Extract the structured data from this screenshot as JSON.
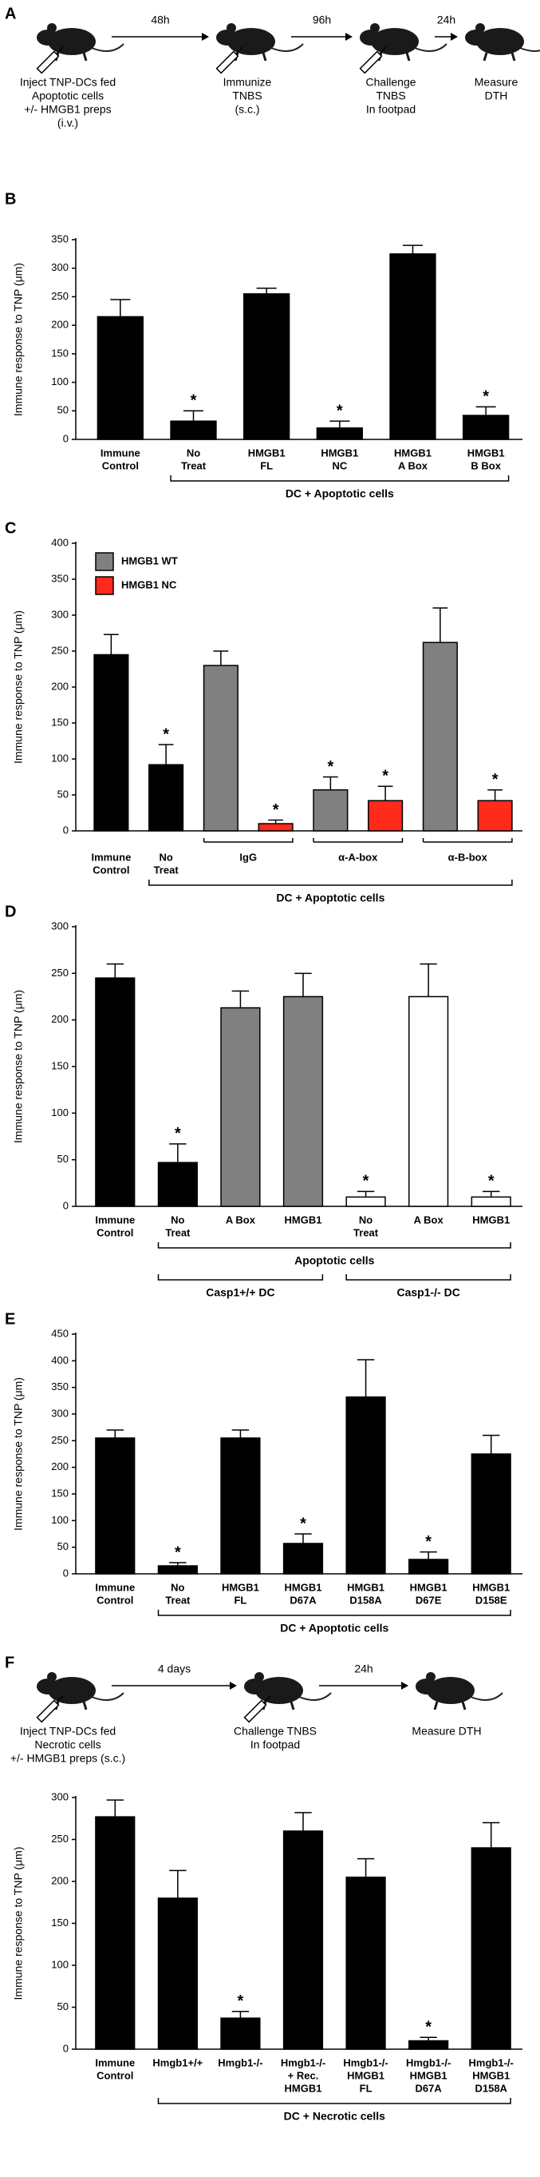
{
  "schematic_a": {
    "letter": "A",
    "steps": [
      [
        "Inject TNP-DCs fed",
        "Apoptotic cells",
        "+/- HMGB1 preps",
        "(i.v.)"
      ],
      [
        "Immunize",
        "TNBS",
        "(s.c.)"
      ],
      [
        "Challenge",
        "TNBS",
        "In footpad"
      ],
      [
        "Measure",
        "DTH"
      ]
    ],
    "intervals": [
      "48h",
      "96h",
      "24h"
    ]
  },
  "chart_data": [
    {
      "type": "bar",
      "letter": "B",
      "ylabel": "Immune response to TNP (μm)",
      "ylim": [
        0,
        350
      ],
      "yticks": [
        0,
        50,
        100,
        150,
        200,
        250,
        300,
        350
      ],
      "categories": [
        [
          "Immune",
          "Control"
        ],
        [
          "No",
          "Treat"
        ],
        [
          "HMGB1",
          "FL"
        ],
        [
          "HMGB1",
          "NC"
        ],
        [
          "HMGB1",
          "A Box"
        ],
        [
          "HMGB1",
          "B Box"
        ]
      ],
      "series": [
        {
          "color": "#000000",
          "values": [
            215,
            32,
            255,
            20,
            325,
            42
          ],
          "errors": [
            30,
            18,
            10,
            12,
            15,
            15
          ],
          "stars": [
            false,
            true,
            false,
            true,
            false,
            true
          ]
        }
      ],
      "star_label": "*",
      "brackets": [
        [
          {
            "label": "DC + Apoptotic cells",
            "span": [
              1,
              5
            ]
          }
        ]
      ]
    },
    {
      "type": "bar",
      "letter": "C",
      "ylabel": "Immune response to TNP (μm)",
      "ylim": [
        0,
        400
      ],
      "yticks": [
        0,
        50,
        100,
        150,
        200,
        250,
        300,
        350,
        400
      ],
      "categories": [
        [
          "Immune",
          "Control"
        ],
        [
          "No",
          "Treat"
        ],
        [
          "IgG"
        ],
        [
          "α-A-box"
        ],
        [
          "α-B-box"
        ]
      ],
      "series": [
        {
          "color": "#000000",
          "values": [
            245,
            92,
            null,
            null,
            null
          ],
          "errors": [
            28,
            28,
            null,
            null,
            null
          ],
          "stars": [
            false,
            true,
            null,
            null,
            null
          ]
        },
        {
          "name": "HMGB1 WT",
          "color": "#808080",
          "values": [
            null,
            null,
            230,
            57,
            262
          ],
          "errors": [
            null,
            null,
            20,
            18,
            48
          ],
          "stars": [
            null,
            null,
            false,
            true,
            false
          ]
        },
        {
          "name": "HMGB1 NC",
          "color": "#ff2a1a",
          "values": [
            null,
            null,
            10,
            42,
            42
          ],
          "errors": [
            null,
            null,
            5,
            20,
            15
          ],
          "stars": [
            null,
            null,
            true,
            true,
            true
          ]
        }
      ],
      "legend": "upper left",
      "star_label": "*",
      "brackets": [
        [
          {
            "label": "DC + Apoptotic cells",
            "span": [
              1,
              4
            ]
          }
        ]
      ]
    },
    {
      "type": "bar",
      "letter": "D",
      "ylabel": "Immune response to TNP (μm)",
      "ylim": [
        0,
        300
      ],
      "yticks": [
        0,
        50,
        100,
        150,
        200,
        250,
        300
      ],
      "categories": [
        [
          "Immune",
          "Control"
        ],
        [
          "No",
          "Treat"
        ],
        [
          "A Box"
        ],
        [
          "HMGB1"
        ],
        [
          "No",
          "Treat"
        ],
        [
          "A Box"
        ],
        [
          "HMGB1"
        ]
      ],
      "series": [
        {
          "color": "#000000",
          "values": [
            245,
            47,
            null,
            null,
            null,
            null,
            null
          ],
          "errors": [
            15,
            20,
            null,
            null,
            null,
            null,
            null
          ],
          "stars": [
            false,
            true,
            null,
            null,
            null,
            null,
            null
          ]
        },
        {
          "color": "#808080",
          "values": [
            null,
            null,
            213,
            225,
            null,
            null,
            null
          ],
          "errors": [
            null,
            null,
            18,
            25,
            null,
            null,
            null
          ],
          "stars": [
            null,
            null,
            false,
            false,
            null,
            null,
            null
          ]
        },
        {
          "color": "#ffffff",
          "values": [
            null,
            null,
            null,
            null,
            10,
            225,
            10
          ],
          "errors": [
            null,
            null,
            null,
            null,
            6,
            35,
            6
          ],
          "stars": [
            null,
            null,
            null,
            null,
            true,
            false,
            true
          ]
        }
      ],
      "star_label": "*",
      "brackets": [
        [
          {
            "label": "Apoptotic cells",
            "span": [
              1,
              6
            ]
          }
        ],
        [
          {
            "label": "Casp1+/+ DC",
            "span": [
              1,
              3
            ]
          },
          {
            "label": "Casp1-/- DC",
            "span": [
              4,
              6
            ]
          }
        ]
      ]
    },
    {
      "type": "bar",
      "letter": "E",
      "ylabel": "Immune response to TNP (μm)",
      "ylim": [
        0,
        450
      ],
      "yticks": [
        0,
        50,
        100,
        150,
        200,
        250,
        300,
        350,
        400,
        450
      ],
      "categories": [
        [
          "Immune",
          "Control"
        ],
        [
          "No",
          "Treat"
        ],
        [
          "HMGB1",
          "FL"
        ],
        [
          "HMGB1",
          "D67A"
        ],
        [
          "HMGB1",
          "D158A"
        ],
        [
          "HMGB1",
          "D67E"
        ],
        [
          "HMGB1",
          "D158E"
        ]
      ],
      "series": [
        {
          "color": "#000000",
          "values": [
            255,
            15,
            255,
            57,
            332,
            27,
            225
          ],
          "errors": [
            15,
            6,
            15,
            18,
            70,
            14,
            35
          ],
          "stars": [
            false,
            true,
            false,
            true,
            false,
            true,
            false
          ]
        }
      ],
      "star_label": "*",
      "brackets": [
        [
          {
            "label": "DC + Apoptotic cells",
            "span": [
              1,
              6
            ]
          }
        ]
      ]
    },
    {
      "type": "bar",
      "ylabel": "Immune response to TNP (μm)",
      "ylim": [
        0,
        300
      ],
      "yticks": [
        0,
        50,
        100,
        150,
        200,
        250,
        300
      ],
      "categories": [
        [
          "Immune",
          "Control"
        ],
        [
          "Hmgb1+/+"
        ],
        [
          "Hmgb1-/-"
        ],
        [
          "Hmgb1-/-",
          "+ Rec.",
          "HMGB1"
        ],
        [
          "Hmgb1-/-",
          "HMGB1",
          "FL"
        ],
        [
          "Hmgb1-/-",
          "HMGB1",
          "D67A"
        ],
        [
          "Hmgb1-/-",
          "HMGB1",
          "D158A"
        ]
      ],
      "series": [
        {
          "color": "#000000",
          "values": [
            277,
            180,
            37,
            260,
            205,
            10,
            240
          ],
          "errors": [
            20,
            33,
            8,
            22,
            22,
            4,
            30
          ],
          "stars": [
            false,
            false,
            true,
            false,
            false,
            true,
            false
          ]
        }
      ],
      "star_label": "*",
      "brackets": [
        [
          {
            "label": "DC + Necrotic cells",
            "span": [
              1,
              6
            ]
          }
        ]
      ]
    }
  ],
  "schematic_f": {
    "letter": "F",
    "steps": [
      [
        "Inject TNP-DCs fed",
        "Necrotic cells",
        "+/- HMGB1 preps (s.c.)"
      ],
      [
        "Challenge TNBS",
        "In footpad"
      ],
      [
        "Measure DTH"
      ]
    ],
    "intervals": [
      "4 days",
      "24h"
    ]
  }
}
